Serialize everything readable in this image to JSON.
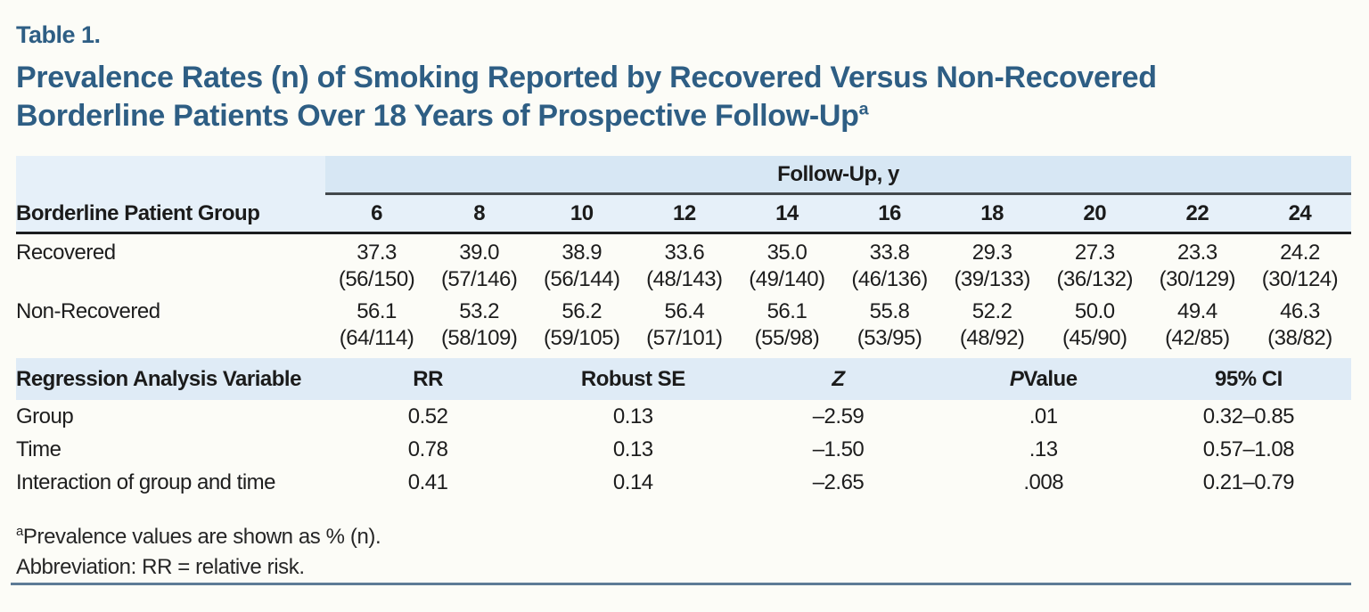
{
  "page": {
    "table_label": "Table 1.",
    "title_line1": "Prevalence Rates (n) of Smoking Reported by Recovered Versus Non-Recovered",
    "title_line2": "Borderline Patients Over 18 Years of Prospective Follow-Up",
    "title_superscript": "a"
  },
  "colors": {
    "title_blue": "#2e5e84",
    "header_light_blue": "#e6f0f9",
    "banner_blue": "#d7e7f4",
    "regression_header_blue": "#dfebf6",
    "bottom_rule_blue": "#5d7b96",
    "page_background": "#fcfcf7"
  },
  "prevalence_table": {
    "span_header": "Follow-Up, y",
    "row_header": "Borderline Patient Group",
    "years": [
      "6",
      "8",
      "10",
      "12",
      "14",
      "16",
      "18",
      "20",
      "22",
      "24"
    ],
    "rows": [
      {
        "label": "Recovered",
        "cells": [
          {
            "pct": "37.3",
            "n": "(56/150)"
          },
          {
            "pct": "39.0",
            "n": "(57/146)"
          },
          {
            "pct": "38.9",
            "n": "(56/144)"
          },
          {
            "pct": "33.6",
            "n": "(48/143)"
          },
          {
            "pct": "35.0",
            "n": "(49/140)"
          },
          {
            "pct": "33.8",
            "n": "(46/136)"
          },
          {
            "pct": "29.3",
            "n": "(39/133)"
          },
          {
            "pct": "27.3",
            "n": "(36/132)"
          },
          {
            "pct": "23.3",
            "n": "(30/129)"
          },
          {
            "pct": "24.2",
            "n": "(30/124)"
          }
        ]
      },
      {
        "label": "Non-Recovered",
        "cells": [
          {
            "pct": "56.1",
            "n": "(64/114)"
          },
          {
            "pct": "53.2",
            "n": "(58/109)"
          },
          {
            "pct": "56.2",
            "n": "(59/105)"
          },
          {
            "pct": "56.4",
            "n": "(57/101)"
          },
          {
            "pct": "56.1",
            "n": "(55/98)"
          },
          {
            "pct": "55.8",
            "n": "(53/95)"
          },
          {
            "pct": "52.2",
            "n": "(48/92)"
          },
          {
            "pct": "50.0",
            "n": "(45/90)"
          },
          {
            "pct": "49.4",
            "n": "(42/85)"
          },
          {
            "pct": "46.3",
            "n": "(38/82)"
          }
        ]
      }
    ]
  },
  "regression_table": {
    "row_header": "Regression Analysis Variable",
    "col_rr": "RR",
    "col_robust_se": "Robust SE",
    "col_z": "Z",
    "col_p_italic": "P",
    "col_p_rest": " Value",
    "col_ci": "95% CI",
    "rows": [
      {
        "label": "Group",
        "rr": "0.52",
        "se": "0.13",
        "z": "–2.59",
        "p": ".01",
        "ci": "0.32–0.85"
      },
      {
        "label": "Time",
        "rr": "0.78",
        "se": "0.13",
        "z": "–1.50",
        "p": ".13",
        "ci": "0.57–1.08"
      },
      {
        "label": "Interaction of group and time",
        "rr": "0.41",
        "se": "0.14",
        "z": "–2.65",
        "p": ".008",
        "ci": "0.21–0.79"
      }
    ]
  },
  "footnotes": {
    "a_marker": "a",
    "a_text": "Prevalence values are shown as % (n).",
    "abbreviation": "Abbreviation: RR = relative risk."
  }
}
